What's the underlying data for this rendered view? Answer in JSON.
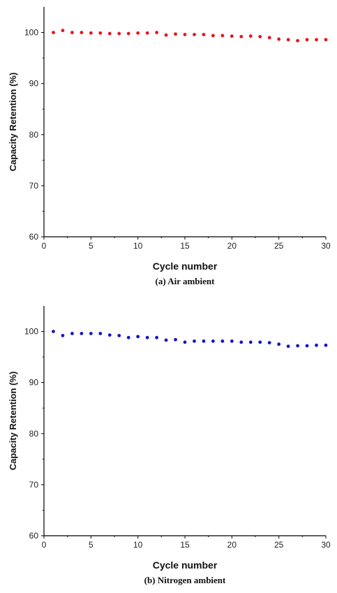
{
  "chart_data": [
    {
      "type": "scatter",
      "title": "",
      "caption": "(a)  Air ambient",
      "xlabel": "Cycle number",
      "ylabel": "Capacity Retention (%)",
      "xlim": [
        0,
        30
      ],
      "ylim": [
        60,
        105
      ],
      "xticks": [
        0,
        5,
        10,
        15,
        20,
        25,
        30
      ],
      "yticks": [
        60,
        70,
        80,
        90,
        100
      ],
      "grid": false,
      "marker_color": "#e8131a",
      "x": [
        1,
        2,
        3,
        4,
        5,
        6,
        7,
        8,
        9,
        10,
        11,
        12,
        13,
        14,
        15,
        16,
        17,
        18,
        19,
        20,
        21,
        22,
        23,
        24,
        25,
        26,
        27,
        28,
        29,
        30
      ],
      "y": [
        100.0,
        100.4,
        100.0,
        100.0,
        99.9,
        99.9,
        99.8,
        99.8,
        99.8,
        99.9,
        99.9,
        100.0,
        99.5,
        99.7,
        99.6,
        99.6,
        99.6,
        99.4,
        99.4,
        99.3,
        99.2,
        99.3,
        99.2,
        99.0,
        98.7,
        98.6,
        98.4,
        98.6,
        98.6,
        98.6
      ]
    },
    {
      "type": "scatter",
      "title": "",
      "caption": "(b) Nitrogen ambient",
      "xlabel": "Cycle number",
      "ylabel": "Capacity Retention (%)",
      "xlim": [
        0,
        30
      ],
      "ylim": [
        60,
        105
      ],
      "xticks": [
        0,
        5,
        10,
        15,
        20,
        25,
        30
      ],
      "yticks": [
        60,
        70,
        80,
        90,
        100
      ],
      "grid": false,
      "marker_color": "#1515c8",
      "x": [
        1,
        2,
        3,
        4,
        5,
        6,
        7,
        8,
        9,
        10,
        11,
        12,
        13,
        14,
        15,
        16,
        17,
        18,
        19,
        20,
        21,
        22,
        23,
        24,
        25,
        26,
        27,
        28,
        29,
        30
      ],
      "y": [
        100.0,
        99.2,
        99.6,
        99.6,
        99.6,
        99.6,
        99.3,
        99.2,
        98.8,
        99.0,
        98.8,
        98.8,
        98.3,
        98.4,
        97.9,
        98.1,
        98.1,
        98.1,
        98.1,
        98.1,
        97.9,
        97.9,
        97.9,
        97.8,
        97.5,
        97.1,
        97.2,
        97.2,
        97.3,
        97.3
      ]
    }
  ]
}
